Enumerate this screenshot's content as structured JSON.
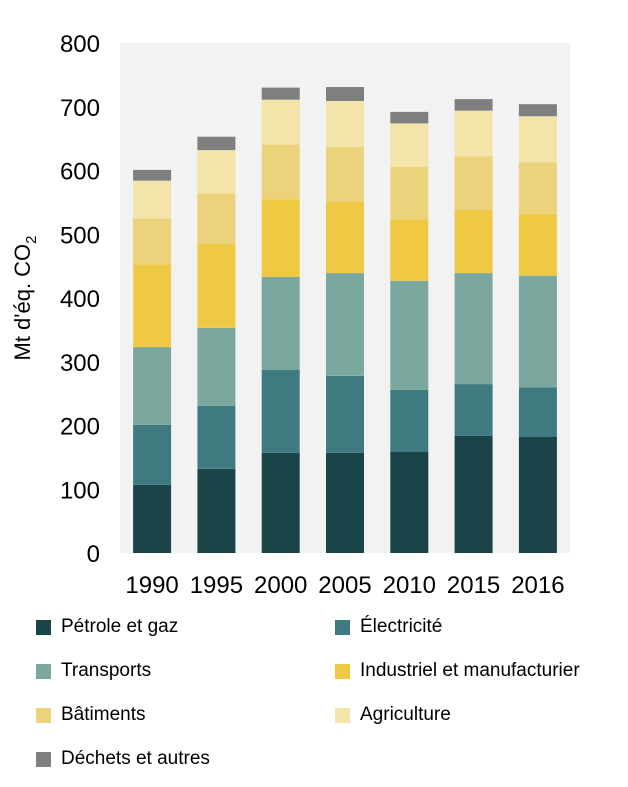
{
  "chart_data": {
    "type": "bar",
    "stacked": true,
    "ylabel": "Mt d'éq. CO",
    "ylabel_sub": "2",
    "ylim": [
      0,
      800
    ],
    "yticks": [
      0,
      100,
      200,
      300,
      400,
      500,
      600,
      700,
      800
    ],
    "grid": false,
    "plot_background": "#f2f2f2",
    "categories": [
      "1990",
      "1995",
      "2000",
      "2005",
      "2010",
      "2015",
      "2016"
    ],
    "series": [
      {
        "name": "Pétrole et gaz",
        "color": "#1a4548",
        "values": [
          107,
          132,
          157,
          157,
          159,
          184,
          182
        ]
      },
      {
        "name": "Électricité",
        "color": "#3f7a80",
        "values": [
          94,
          99,
          130,
          121,
          97,
          81,
          78
        ]
      },
      {
        "name": "Transports",
        "color": "#7ba89e",
        "values": [
          122,
          122,
          146,
          161,
          171,
          174,
          175
        ]
      },
      {
        "name": "Industriel et manufacturier",
        "color": "#efc944",
        "values": [
          130,
          132,
          122,
          112,
          96,
          99,
          97
        ]
      },
      {
        "name": "Bâtiments",
        "color": "#ecd27a",
        "values": [
          72,
          79,
          86,
          86,
          83,
          84,
          81
        ]
      },
      {
        "name": "Agriculture",
        "color": "#f3e4a9",
        "values": [
          59,
          68,
          70,
          72,
          68,
          72,
          72
        ]
      },
      {
        "name": "Déchets et autres",
        "color": "#7f7f7f",
        "values": [
          17,
          21,
          19,
          22,
          18,
          18,
          19
        ]
      }
    ],
    "legend_position": "bottom"
  }
}
